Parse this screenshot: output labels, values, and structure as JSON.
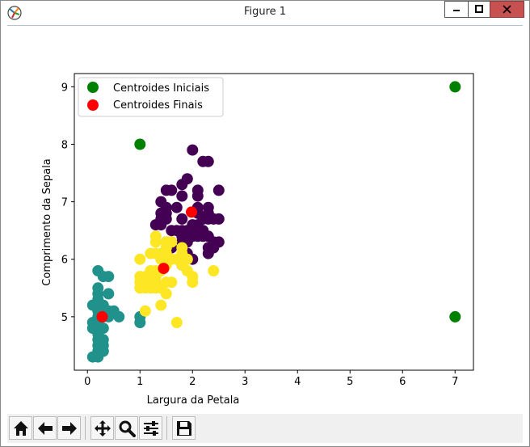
{
  "window": {
    "title": "Figure 1"
  },
  "toolbar": {
    "buttons": [
      "home-icon",
      "back-arrow-icon",
      "forward-arrow-icon",
      "pan-icon",
      "zoom-icon",
      "configure-subplots-icon",
      "save-icon"
    ]
  },
  "chart_data": {
    "type": "scatter",
    "title": "",
    "xlabel": "Largura da Petala",
    "ylabel": "Comprimento da Sepala",
    "xlim": [
      -0.25,
      7.35
    ],
    "ylim": [
      4.07,
      9.23
    ],
    "xticks": [
      0,
      1,
      2,
      3,
      4,
      5,
      6,
      7
    ],
    "yticks": [
      5,
      6,
      7,
      8,
      9
    ],
    "grid": false,
    "legend_position": "top-left",
    "colors": {
      "cluster_1": "#440154",
      "cluster_2": "#21918c",
      "cluster_3": "#fde725",
      "initial_centroids": "#008000",
      "final_centroids": "#ff0000"
    },
    "series": [
      {
        "color": "#440154",
        "points": [
          [
            1.8,
            5.9
          ],
          [
            2.0,
            7.9
          ],
          [
            2.2,
            7.7
          ],
          [
            2.3,
            7.7
          ],
          [
            1.8,
            7.3
          ],
          [
            1.9,
            7.4
          ],
          [
            1.5,
            7.2
          ],
          [
            1.6,
            7.2
          ],
          [
            2.1,
            7.2
          ],
          [
            2.5,
            7.2
          ],
          [
            1.8,
            7.1
          ],
          [
            2.1,
            7.1
          ],
          [
            1.4,
            7.0
          ],
          [
            1.7,
            6.9
          ],
          [
            2.1,
            6.9
          ],
          [
            2.3,
            6.9
          ],
          [
            1.3,
            6.6
          ],
          [
            1.4,
            6.6
          ],
          [
            1.4,
            6.7
          ],
          [
            1.5,
            6.7
          ],
          [
            1.5,
            6.8
          ],
          [
            1.8,
            6.7
          ],
          [
            2.2,
            6.7
          ],
          [
            2.3,
            6.7
          ],
          [
            2.4,
            6.7
          ],
          [
            2.5,
            6.7
          ],
          [
            2.3,
            6.8
          ],
          [
            2.1,
            6.8
          ],
          [
            1.5,
            6.9
          ],
          [
            1.4,
            6.8
          ],
          [
            1.8,
            6.3
          ],
          [
            1.9,
            6.3
          ],
          [
            2.4,
            6.3
          ],
          [
            2.5,
            6.3
          ],
          [
            1.5,
            6.3
          ],
          [
            1.6,
            6.3
          ],
          [
            2.0,
            6.4
          ],
          [
            2.1,
            6.4
          ],
          [
            2.3,
            6.4
          ],
          [
            2.2,
            6.4
          ],
          [
            1.8,
            6.4
          ],
          [
            1.8,
            6.5
          ],
          [
            2.0,
            6.5
          ],
          [
            2.2,
            6.5
          ],
          [
            1.9,
            6.5
          ],
          [
            2.1,
            6.5
          ],
          [
            1.6,
            6.5
          ],
          [
            1.7,
            6.5
          ],
          [
            2.0,
            6.6
          ],
          [
            2.1,
            6.6
          ],
          [
            1.6,
            6.2
          ],
          [
            2.3,
            6.2
          ],
          [
            2.4,
            6.2
          ],
          [
            1.9,
            6.1
          ],
          [
            2.3,
            6.1
          ],
          [
            2.0,
            6.0
          ]
        ]
      },
      {
        "color": "#21918c",
        "points": [
          [
            0.2,
            5.8
          ],
          [
            0.4,
            5.7
          ],
          [
            0.3,
            5.7
          ],
          [
            0.2,
            5.5
          ],
          [
            0.2,
            5.4
          ],
          [
            0.4,
            5.4
          ],
          [
            0.2,
            5.2
          ],
          [
            0.1,
            5.2
          ],
          [
            0.2,
            5.3
          ],
          [
            0.3,
            5.1
          ],
          [
            0.4,
            5.1
          ],
          [
            0.5,
            5.1
          ],
          [
            0.6,
            5.0
          ],
          [
            0.2,
            5.0
          ],
          [
            0.3,
            5.0
          ],
          [
            0.4,
            5.0
          ],
          [
            0.1,
            4.9
          ],
          [
            0.2,
            4.9
          ],
          [
            0.2,
            4.8
          ],
          [
            0.1,
            4.8
          ],
          [
            0.2,
            4.7
          ],
          [
            0.3,
            4.6
          ],
          [
            0.2,
            4.6
          ],
          [
            0.3,
            4.5
          ],
          [
            0.2,
            4.4
          ],
          [
            0.2,
            4.3
          ],
          [
            0.1,
            4.3
          ],
          [
            0.3,
            4.8
          ],
          [
            0.2,
            4.5
          ],
          [
            0.3,
            4.4
          ],
          [
            1.0,
            5.0
          ],
          [
            1.0,
            4.9
          ],
          [
            0.2,
            5.1
          ],
          [
            0.3,
            5.2
          ]
        ]
      },
      {
        "color": "#fde725",
        "points": [
          [
            1.3,
            6.4
          ],
          [
            1.3,
            6.3
          ],
          [
            1.5,
            6.3
          ],
          [
            1.6,
            6.3
          ],
          [
            1.3,
            6.1
          ],
          [
            1.4,
            6.1
          ],
          [
            1.5,
            6.2
          ],
          [
            1.8,
            6.1
          ],
          [
            1.4,
            6.0
          ],
          [
            1.2,
            6.1
          ],
          [
            1.0,
            6.0
          ],
          [
            1.5,
            6.0
          ],
          [
            1.6,
            6.0
          ],
          [
            1.2,
            5.8
          ],
          [
            1.3,
            5.8
          ],
          [
            1.4,
            5.8
          ],
          [
            1.5,
            5.9
          ],
          [
            1.8,
            5.9
          ],
          [
            1.9,
            5.8
          ],
          [
            1.0,
            5.7
          ],
          [
            1.1,
            5.7
          ],
          [
            1.2,
            5.7
          ],
          [
            1.3,
            5.7
          ],
          [
            1.0,
            5.6
          ],
          [
            1.1,
            5.6
          ],
          [
            1.3,
            5.6
          ],
          [
            1.5,
            5.6
          ],
          [
            1.0,
            5.5
          ],
          [
            1.1,
            5.5
          ],
          [
            1.2,
            5.5
          ],
          [
            1.3,
            5.5
          ],
          [
            1.4,
            5.5
          ],
          [
            1.6,
            5.6
          ],
          [
            1.5,
            5.4
          ],
          [
            2.0,
            5.7
          ],
          [
            2.0,
            5.6
          ],
          [
            2.4,
            5.8
          ],
          [
            1.4,
            5.2
          ],
          [
            1.1,
            5.1
          ],
          [
            1.7,
            4.9
          ],
          [
            1.8,
            6.2
          ],
          [
            1.9,
            6.0
          ],
          [
            1.7,
            6.0
          ],
          [
            1.5,
            6.1
          ]
        ]
      },
      {
        "name": "Centroides Iniciais",
        "color": "#008000",
        "points": [
          [
            1.0,
            8.0
          ],
          [
            7.0,
            9.0
          ],
          [
            7.0,
            5.0
          ]
        ]
      },
      {
        "name": "Centroides Finais",
        "color": "#ff0000",
        "points": [
          [
            1.98,
            6.82
          ],
          [
            0.28,
            5.0
          ],
          [
            1.45,
            5.84
          ]
        ]
      }
    ]
  }
}
